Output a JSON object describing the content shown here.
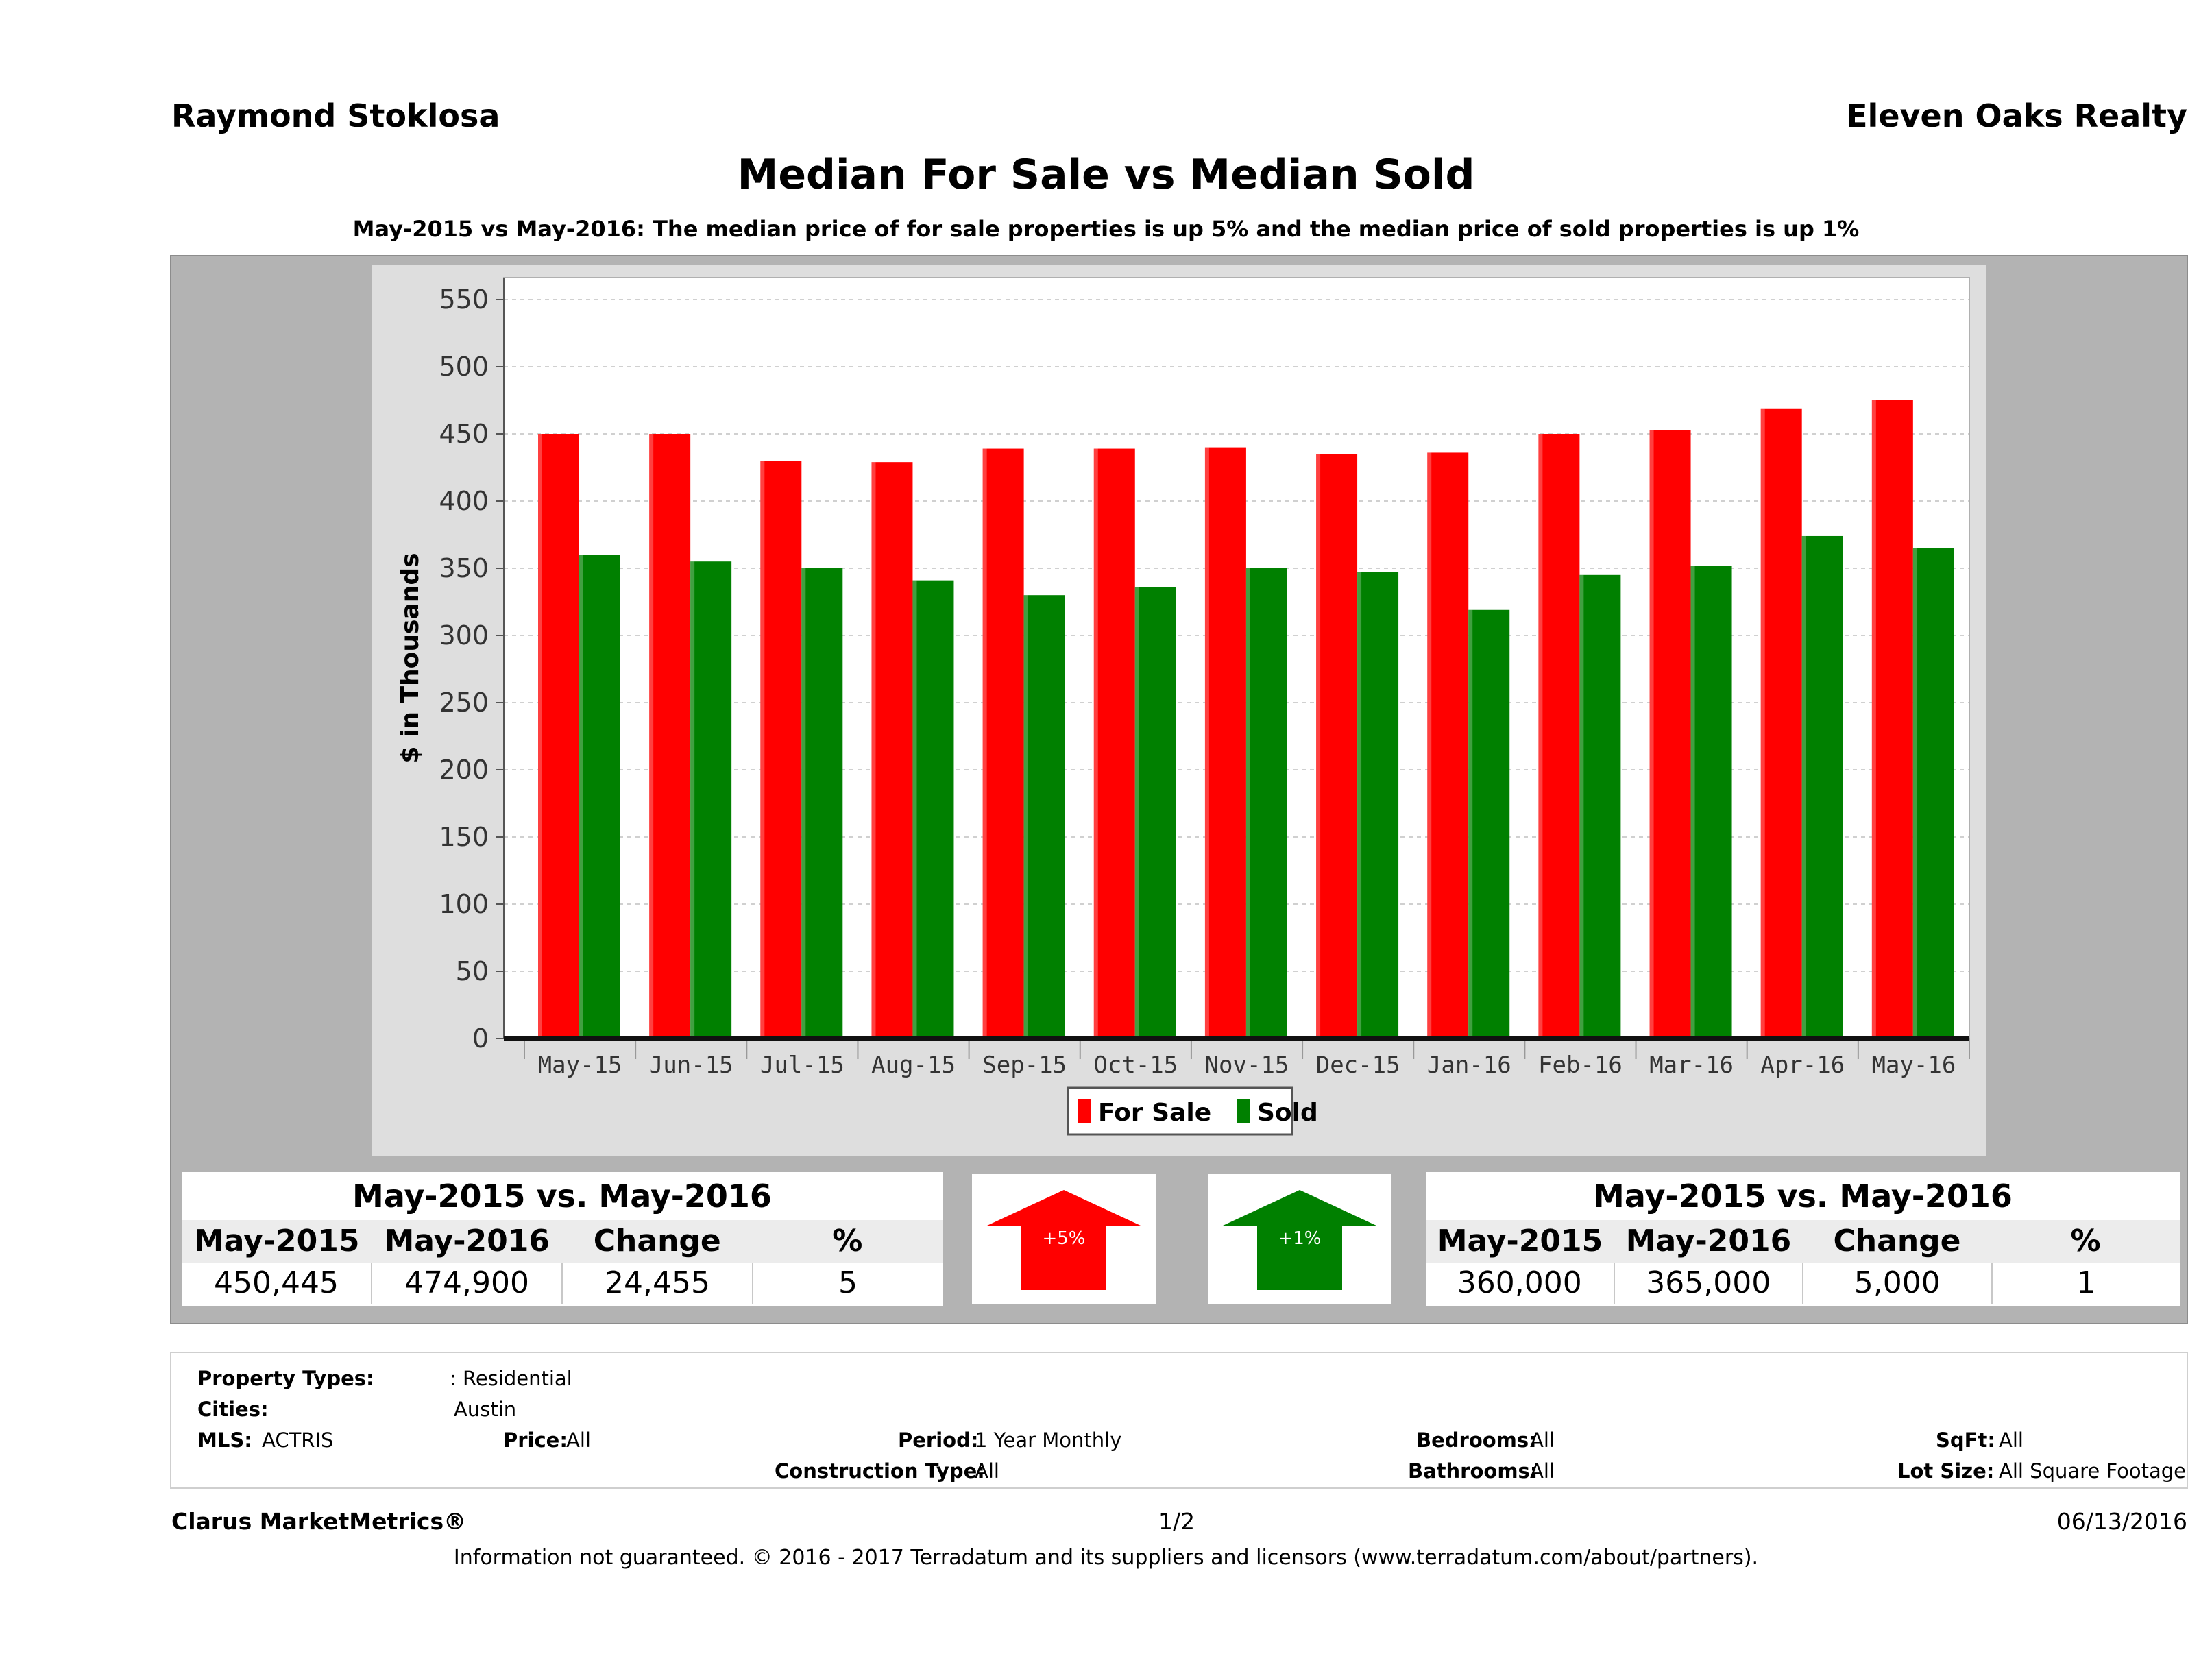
{
  "header": {
    "agent": "Raymond Stoklosa",
    "company": "Eleven Oaks Realty",
    "title": "Median For Sale vs Median Sold",
    "subtitle": "May-2015 vs May-2016: The median price of for sale properties is up 5% and the median price of sold properties is up 1%"
  },
  "chart_data": {
    "type": "bar",
    "categories": [
      "May-15",
      "Jun-15",
      "Jul-15",
      "Aug-15",
      "Sep-15",
      "Oct-15",
      "Nov-15",
      "Dec-15",
      "Jan-16",
      "Feb-16",
      "Mar-16",
      "Apr-16",
      "May-16"
    ],
    "series": [
      {
        "name": "For Sale",
        "color": "#ff0000",
        "values": [
          450,
          450,
          430,
          429,
          439,
          439,
          440,
          435,
          436,
          450,
          453,
          469,
          475
        ]
      },
      {
        "name": "Sold",
        "color": "#008000",
        "values": [
          360,
          355,
          350,
          341,
          330,
          336,
          350,
          347,
          319,
          345,
          352,
          374,
          365
        ]
      }
    ],
    "ylabel": "$ in Thousands",
    "ylim": [
      0,
      550
    ],
    "yticks": [
      "0",
      "50",
      "100",
      "150",
      "200",
      "250",
      "300",
      "350",
      "400",
      "450",
      "500",
      "550"
    ],
    "legend": "bottom-center",
    "grid": true
  },
  "for_sale_stats": {
    "heading": "May-2015 vs. May-2016",
    "columns": [
      "May-2015",
      "May-2016",
      "Change",
      "%"
    ],
    "values": [
      "450,445",
      "474,900",
      "24,455",
      "5"
    ],
    "badge": "+5%",
    "badge_color": "#ff0000"
  },
  "sold_stats": {
    "heading": "May-2015 vs. May-2016",
    "columns": [
      "May-2015",
      "May-2016",
      "Change",
      "%"
    ],
    "values": [
      "360,000",
      "365,000",
      "5,000",
      "1"
    ],
    "badge": "+1%",
    "badge_color": "#008000"
  },
  "criteria": {
    "property_types_label": "Property Types:",
    "property_types_value": ": Residential",
    "cities_label": "Cities:",
    "cities_value": "Austin",
    "mls_label": "MLS:",
    "mls_value": "ACTRIS",
    "price_label": "Price:",
    "price_value": "All",
    "period_label": "Period:",
    "period_value": "1 Year Monthly",
    "construction_label": "Construction Type:",
    "construction_value": "All",
    "bedrooms_label": "Bedrooms:",
    "bedrooms_value": "All",
    "bathrooms_label": "Bathrooms:",
    "bathrooms_value": "All",
    "sqft_label": "SqFt:",
    "sqft_value": "All",
    "lot_label": "Lot Size:",
    "lot_value": "All Square Footage"
  },
  "footer": {
    "brand": "Clarus MarketMetrics®",
    "page": "1/2",
    "date": "06/13/2016",
    "disclaimer": "Information not guaranteed. © 2016 - 2017 Terradatum and its suppliers and licensors (www.terradatum.com/about/partners)."
  }
}
